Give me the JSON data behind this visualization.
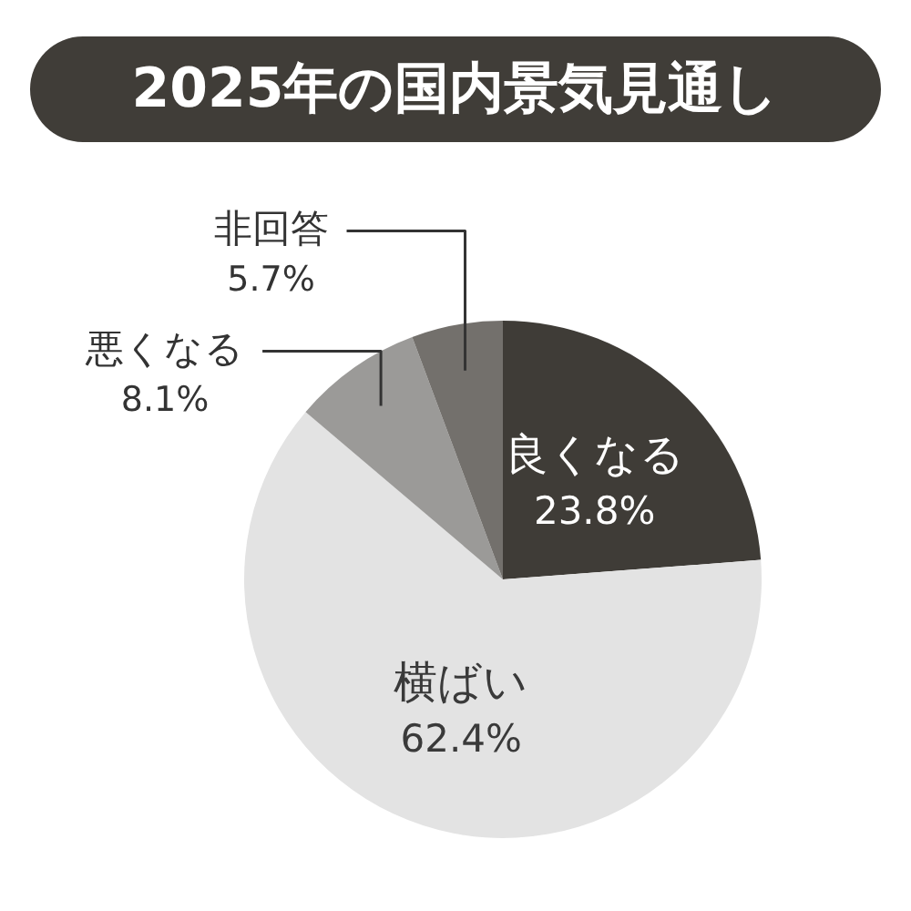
{
  "chart_data": {
    "type": "pie",
    "title": "2025年の国内景気見通し",
    "categories": [
      "良くなる",
      "横ばい",
      "悪くなる",
      "非回答"
    ],
    "values": [
      23.8,
      62.4,
      8.1,
      5.7
    ],
    "value_labels": [
      "23.8%",
      "62.4%",
      "8.1%",
      "5.7%"
    ],
    "colors": [
      "#3f3c37",
      "#e3e3e3",
      "#9b9a98",
      "#73706c"
    ]
  }
}
